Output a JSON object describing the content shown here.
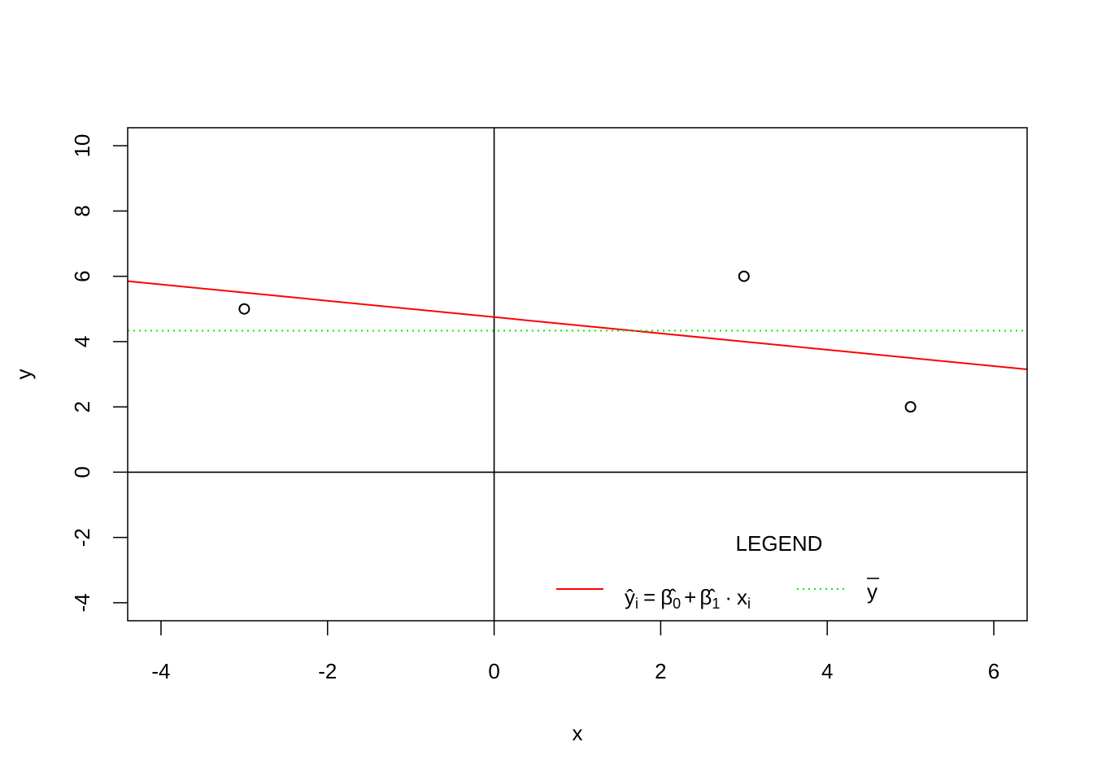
{
  "chart_data": {
    "type": "scatter",
    "title": "",
    "xlabel": "x",
    "ylabel": "y",
    "xlim": [
      -4.4,
      6.4
    ],
    "ylim": [
      -4.55,
      10.55
    ],
    "x_ticks": [
      "-4",
      "-2",
      "0",
      "2",
      "4",
      "6"
    ],
    "y_ticks": [
      "-4",
      "-2",
      "0",
      "2",
      "4",
      "6",
      "8",
      "10"
    ],
    "grid": false,
    "reference_lines": {
      "vertical_x": 0,
      "horizontal_y": 0
    },
    "points": {
      "x": [
        -3,
        3,
        5
      ],
      "y": [
        5,
        6,
        2
      ]
    },
    "fitted_line": {
      "intercept": 4.75,
      "slope": -0.25,
      "color": "#ff0000",
      "style": "solid"
    },
    "mean_line": {
      "y": 4.333,
      "color": "#00ee00",
      "style": "dotted"
    },
    "legend": {
      "title": "LEGEND",
      "placement": "bottom-right",
      "entries": [
        {
          "y_hat": "ŷ",
          "sub_i": "i",
          "equals": "=",
          "beta_hat": "β̂",
          "sub_0": "0",
          "plus": "+",
          "sub_1": "1",
          "dot": "·",
          "x": "x",
          "color": "#ff0000"
        },
        {
          "y_bar": "y",
          "color": "#00ee00"
        }
      ]
    }
  }
}
